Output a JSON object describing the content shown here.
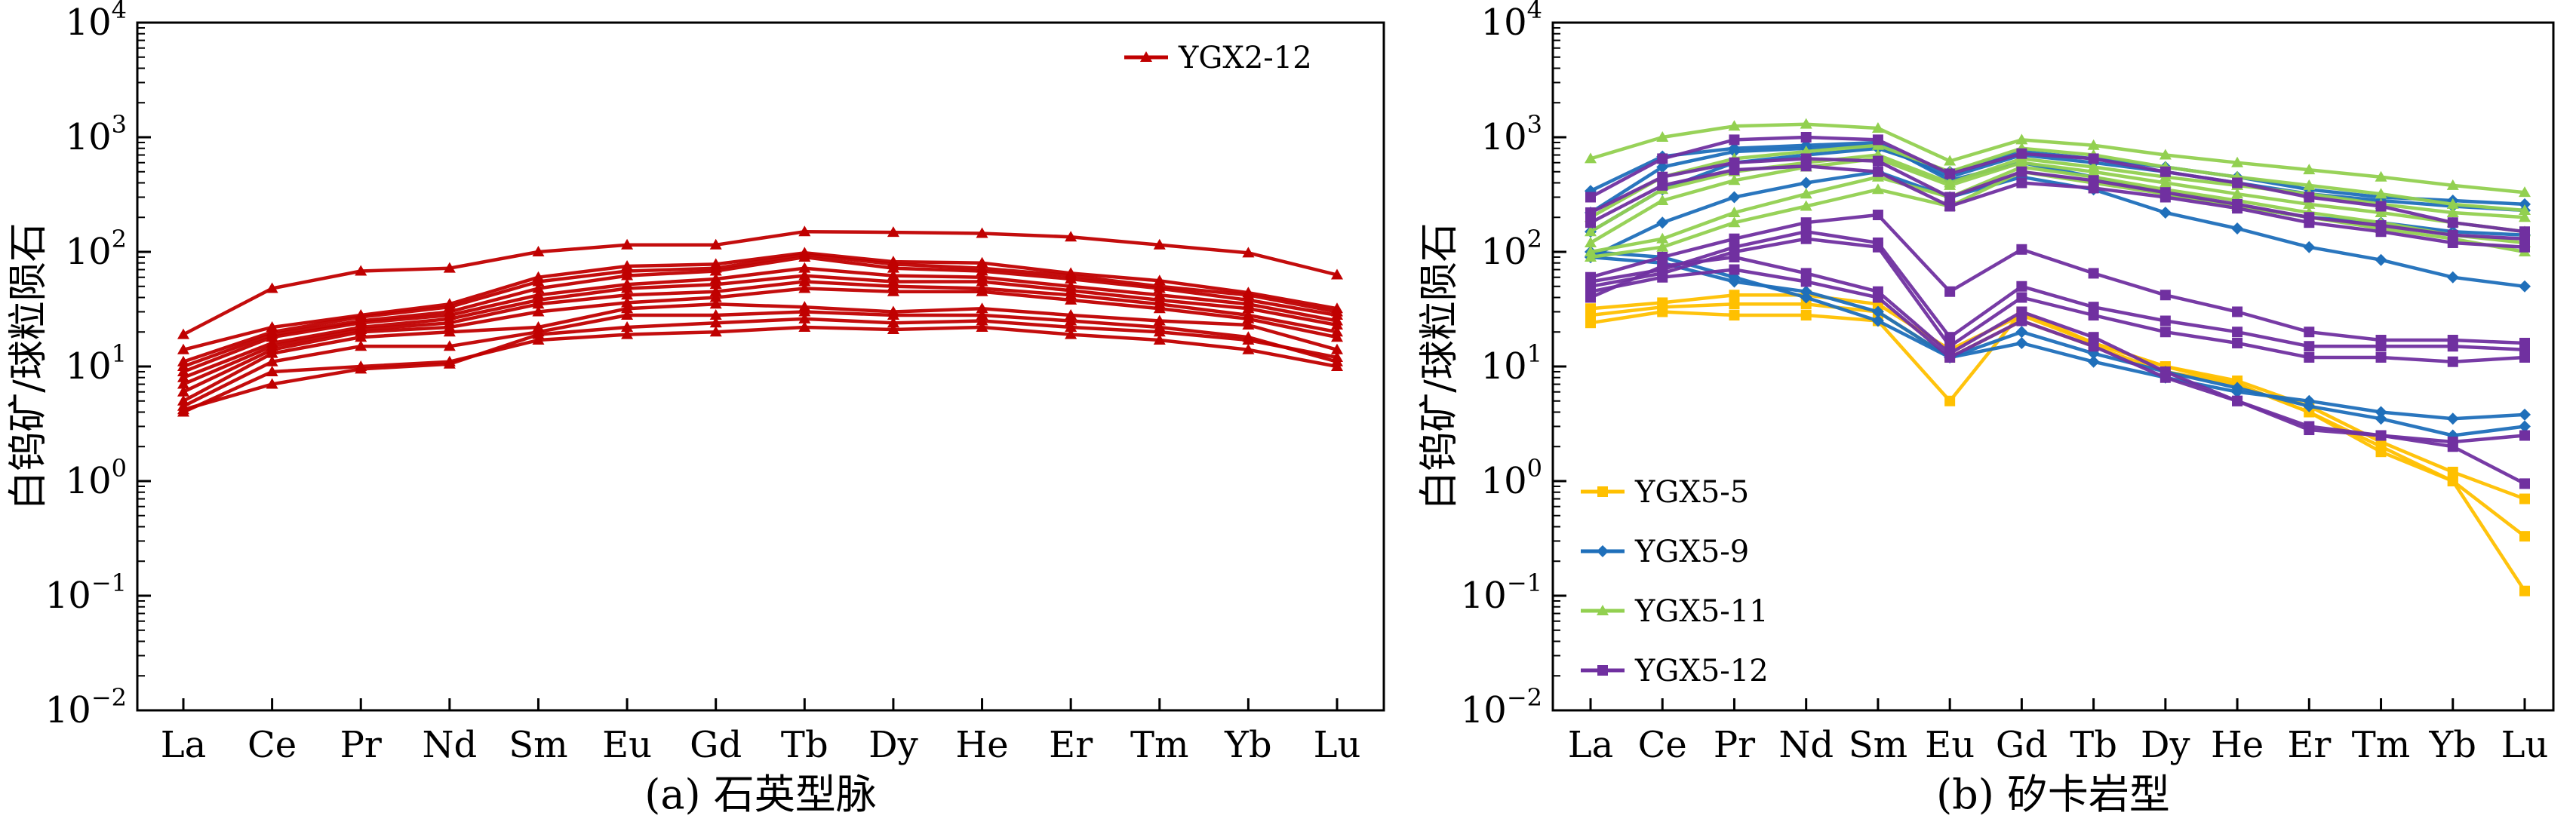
{
  "chart_data": [
    {
      "type": "line",
      "caption": "(a) 石英型脉",
      "ylabel": "白钨矿/球粒陨石",
      "yscale": "log",
      "ylim": [
        0.01,
        10000
      ],
      "y_ticks": [
        0.01,
        0.1,
        1,
        10,
        100,
        1000,
        10000
      ],
      "y_tick_labels": [
        {
          "base": "10",
          "exp": "−2"
        },
        {
          "base": "10",
          "exp": "−1"
        },
        {
          "base": "10",
          "exp": "0"
        },
        {
          "base": "10",
          "exp": "1"
        },
        {
          "base": "10",
          "exp": "2"
        },
        {
          "base": "10",
          "exp": "3"
        },
        {
          "base": "10",
          "exp": "4"
        }
      ],
      "categories": [
        "La",
        "Ce",
        "Pr",
        "Nd",
        "Sm",
        "Eu",
        "Gd",
        "Tb",
        "Dy",
        "He",
        "Er",
        "Tm",
        "Yb",
        "Lu"
      ],
      "legend_position": "top-right",
      "legend": [
        {
          "name": "YGX2-12",
          "color": "#c00000",
          "marker": "triangle"
        }
      ],
      "series": [
        {
          "group": "YGX2-12",
          "values": [
            19,
            48,
            68,
            72,
            100,
            115,
            115,
            150,
            148,
            145,
            135,
            115,
            98,
            63
          ]
        },
        {
          "group": "YGX2-12",
          "values": [
            14,
            22,
            28,
            35,
            60,
            75,
            78,
            98,
            82,
            80,
            65,
            56,
            44,
            32
          ]
        },
        {
          "group": "YGX2-12",
          "values": [
            11,
            20,
            27,
            33,
            55,
            68,
            72,
            95,
            78,
            72,
            62,
            50,
            42,
            30
          ]
        },
        {
          "group": "YGX2-12",
          "values": [
            10,
            19,
            25,
            30,
            48,
            62,
            68,
            90,
            72,
            68,
            58,
            48,
            38,
            28
          ]
        },
        {
          "group": "YGX2-12",
          "values": [
            9,
            18,
            24,
            28,
            42,
            52,
            58,
            72,
            62,
            60,
            50,
            42,
            35,
            25
          ]
        },
        {
          "group": "YGX2-12",
          "values": [
            8,
            16,
            22,
            26,
            38,
            48,
            52,
            62,
            55,
            55,
            46,
            38,
            32,
            23
          ]
        },
        {
          "group": "YGX2-12",
          "values": [
            7,
            15,
            21,
            24,
            35,
            42,
            45,
            55,
            50,
            48,
            42,
            35,
            28,
            20
          ]
        },
        {
          "group": "YGX2-12",
          "values": [
            6,
            14,
            20,
            22,
            30,
            36,
            40,
            48,
            45,
            45,
            38,
            32,
            26,
            18
          ]
        },
        {
          "group": "YGX2-12",
          "values": [
            5,
            13,
            18,
            20,
            22,
            32,
            35,
            33,
            30,
            32,
            28,
            25,
            23,
            14
          ]
        },
        {
          "group": "YGX2-12",
          "values": [
            4.5,
            11,
            15,
            15,
            20,
            28,
            28,
            30,
            28,
            28,
            25,
            22,
            18,
            11
          ]
        },
        {
          "group": "YGX2-12",
          "values": [
            4,
            9,
            10,
            11,
            17,
            19,
            20,
            22,
            21,
            22,
            19,
            17,
            14,
            10
          ]
        },
        {
          "group": "YGX2-12",
          "values": [
            4.2,
            7,
            9.5,
            10.5,
            19,
            22,
            24,
            26,
            24,
            25,
            22,
            20,
            17,
            12
          ]
        }
      ]
    },
    {
      "type": "line",
      "caption": "(b) 矽卡岩型",
      "ylabel": "白钨矿/球粒陨石",
      "yscale": "log",
      "ylim": [
        0.01,
        10000
      ],
      "y_ticks": [
        0.01,
        0.1,
        1,
        10,
        100,
        1000,
        10000
      ],
      "y_tick_labels": [
        {
          "base": "10",
          "exp": "−2"
        },
        {
          "base": "10",
          "exp": "−1"
        },
        {
          "base": "10",
          "exp": "0"
        },
        {
          "base": "10",
          "exp": "1"
        },
        {
          "base": "10",
          "exp": "2"
        },
        {
          "base": "10",
          "exp": "3"
        },
        {
          "base": "10",
          "exp": "4"
        }
      ],
      "categories": [
        "La",
        "Ce",
        "Pr",
        "Nd",
        "Sm",
        "Eu",
        "Gd",
        "Tb",
        "Dy",
        "He",
        "Er",
        "Tm",
        "Yb",
        "Lu"
      ],
      "legend_position": "bottom-left",
      "legend": [
        {
          "name": "YGX5-5",
          "color": "#ffc000",
          "marker": "square"
        },
        {
          "name": "YGX5-9",
          "color": "#1f6fba",
          "marker": "diamond"
        },
        {
          "name": "YGX5-11",
          "color": "#92d050",
          "marker": "triangle"
        },
        {
          "name": "YGX5-12",
          "color": "#7030a0",
          "marker": "square"
        }
      ],
      "series": [
        {
          "group": "YGX5-5",
          "values": [
            24,
            30,
            28,
            28,
            25,
            5,
            30,
            16,
            10,
            7,
            4,
            2,
            1,
            0.11
          ]
        },
        {
          "group": "YGX5-5",
          "values": [
            28,
            33,
            35,
            35,
            30,
            12,
            25,
            15,
            9,
            7,
            4,
            1.8,
            1,
            0.33
          ]
        },
        {
          "group": "YGX5-5",
          "values": [
            32,
            36,
            42,
            42,
            35,
            14,
            28,
            16,
            10,
            7.5,
            4.5,
            2.2,
            1.2,
            0.7
          ]
        },
        {
          "group": "YGX5-9",
          "values": [
            100,
            90,
            60,
            40,
            25,
            12,
            16,
            11,
            8,
            6,
            5,
            4,
            3.5,
            3.8
          ]
        },
        {
          "group": "YGX5-9",
          "values": [
            90,
            80,
            55,
            45,
            30,
            12,
            20,
            13,
            9,
            6.5,
            4.5,
            3.5,
            2.5,
            3
          ]
        },
        {
          "group": "YGX5-9",
          "values": [
            340,
            680,
            800,
            850,
            900,
            420,
            600,
            450,
            320,
            250,
            200,
            180,
            150,
            140
          ]
        },
        {
          "group": "YGX5-9",
          "values": [
            220,
            550,
            750,
            800,
            850,
            450,
            700,
            600,
            500,
            400,
            320,
            280,
            250,
            230
          ]
        },
        {
          "group": "YGX5-9",
          "values": [
            150,
            350,
            600,
            700,
            800,
            500,
            750,
            650,
            550,
            450,
            350,
            300,
            280,
            260
          ]
        },
        {
          "group": "YGX5-9",
          "values": [
            90,
            180,
            300,
            400,
            500,
            300,
            450,
            350,
            220,
            160,
            110,
            85,
            60,
            50
          ]
        },
        {
          "group": "YGX5-11",
          "values": [
            650,
            1000,
            1250,
            1300,
            1200,
            620,
            950,
            850,
            700,
            600,
            520,
            450,
            380,
            330
          ]
        },
        {
          "group": "YGX5-11",
          "values": [
            200,
            450,
            650,
            750,
            850,
            500,
            800,
            700,
            550,
            450,
            380,
            320,
            260,
            230
          ]
        },
        {
          "group": "YGX5-11",
          "values": [
            150,
            350,
            500,
            600,
            700,
            400,
            650,
            550,
            450,
            380,
            320,
            260,
            220,
            200
          ]
        },
        {
          "group": "YGX5-11",
          "values": [
            120,
            280,
            420,
            550,
            650,
            380,
            600,
            500,
            400,
            320,
            260,
            220,
            180,
            150
          ]
        },
        {
          "group": "YGX5-11",
          "values": [
            100,
            130,
            220,
            320,
            450,
            300,
            550,
            450,
            350,
            280,
            220,
            180,
            140,
            120
          ]
        },
        {
          "group": "YGX5-11",
          "values": [
            90,
            110,
            180,
            250,
            350,
            250,
            500,
            400,
            320,
            250,
            200,
            160,
            130,
            100
          ]
        },
        {
          "group": "YGX5-12",
          "values": [
            300,
            650,
            950,
            1000,
            950,
            480,
            720,
            650,
            500,
            400,
            300,
            250,
            180,
            150
          ]
        },
        {
          "group": "YGX5-12",
          "values": [
            220,
            450,
            600,
            650,
            620,
            300,
            500,
            420,
            330,
            260,
            200,
            170,
            140,
            130
          ]
        },
        {
          "group": "YGX5-12",
          "values": [
            180,
            380,
            520,
            560,
            500,
            250,
            400,
            360,
            300,
            240,
            180,
            150,
            120,
            110
          ]
        },
        {
          "group": "YGX5-12",
          "values": [
            60,
            90,
            130,
            180,
            210,
            45,
            105,
            65,
            42,
            30,
            20,
            17,
            17,
            16
          ]
        },
        {
          "group": "YGX5-12",
          "values": [
            55,
            70,
            110,
            150,
            120,
            18,
            50,
            33,
            25,
            20,
            15,
            15,
            15,
            14
          ]
        },
        {
          "group": "YGX5-12",
          "values": [
            50,
            65,
            100,
            130,
            110,
            15,
            40,
            28,
            20,
            16,
            12,
            12,
            11,
            12
          ]
        },
        {
          "group": "YGX5-12",
          "values": [
            40,
            75,
            90,
            65,
            45,
            13,
            30,
            18,
            9,
            5,
            3,
            2.5,
            2.2,
            2.5
          ]
        },
        {
          "group": "YGX5-12",
          "values": [
            45,
            60,
            70,
            55,
            40,
            12,
            25,
            15,
            8,
            5,
            2.8,
            2.5,
            2,
            0.95
          ]
        }
      ]
    }
  ]
}
